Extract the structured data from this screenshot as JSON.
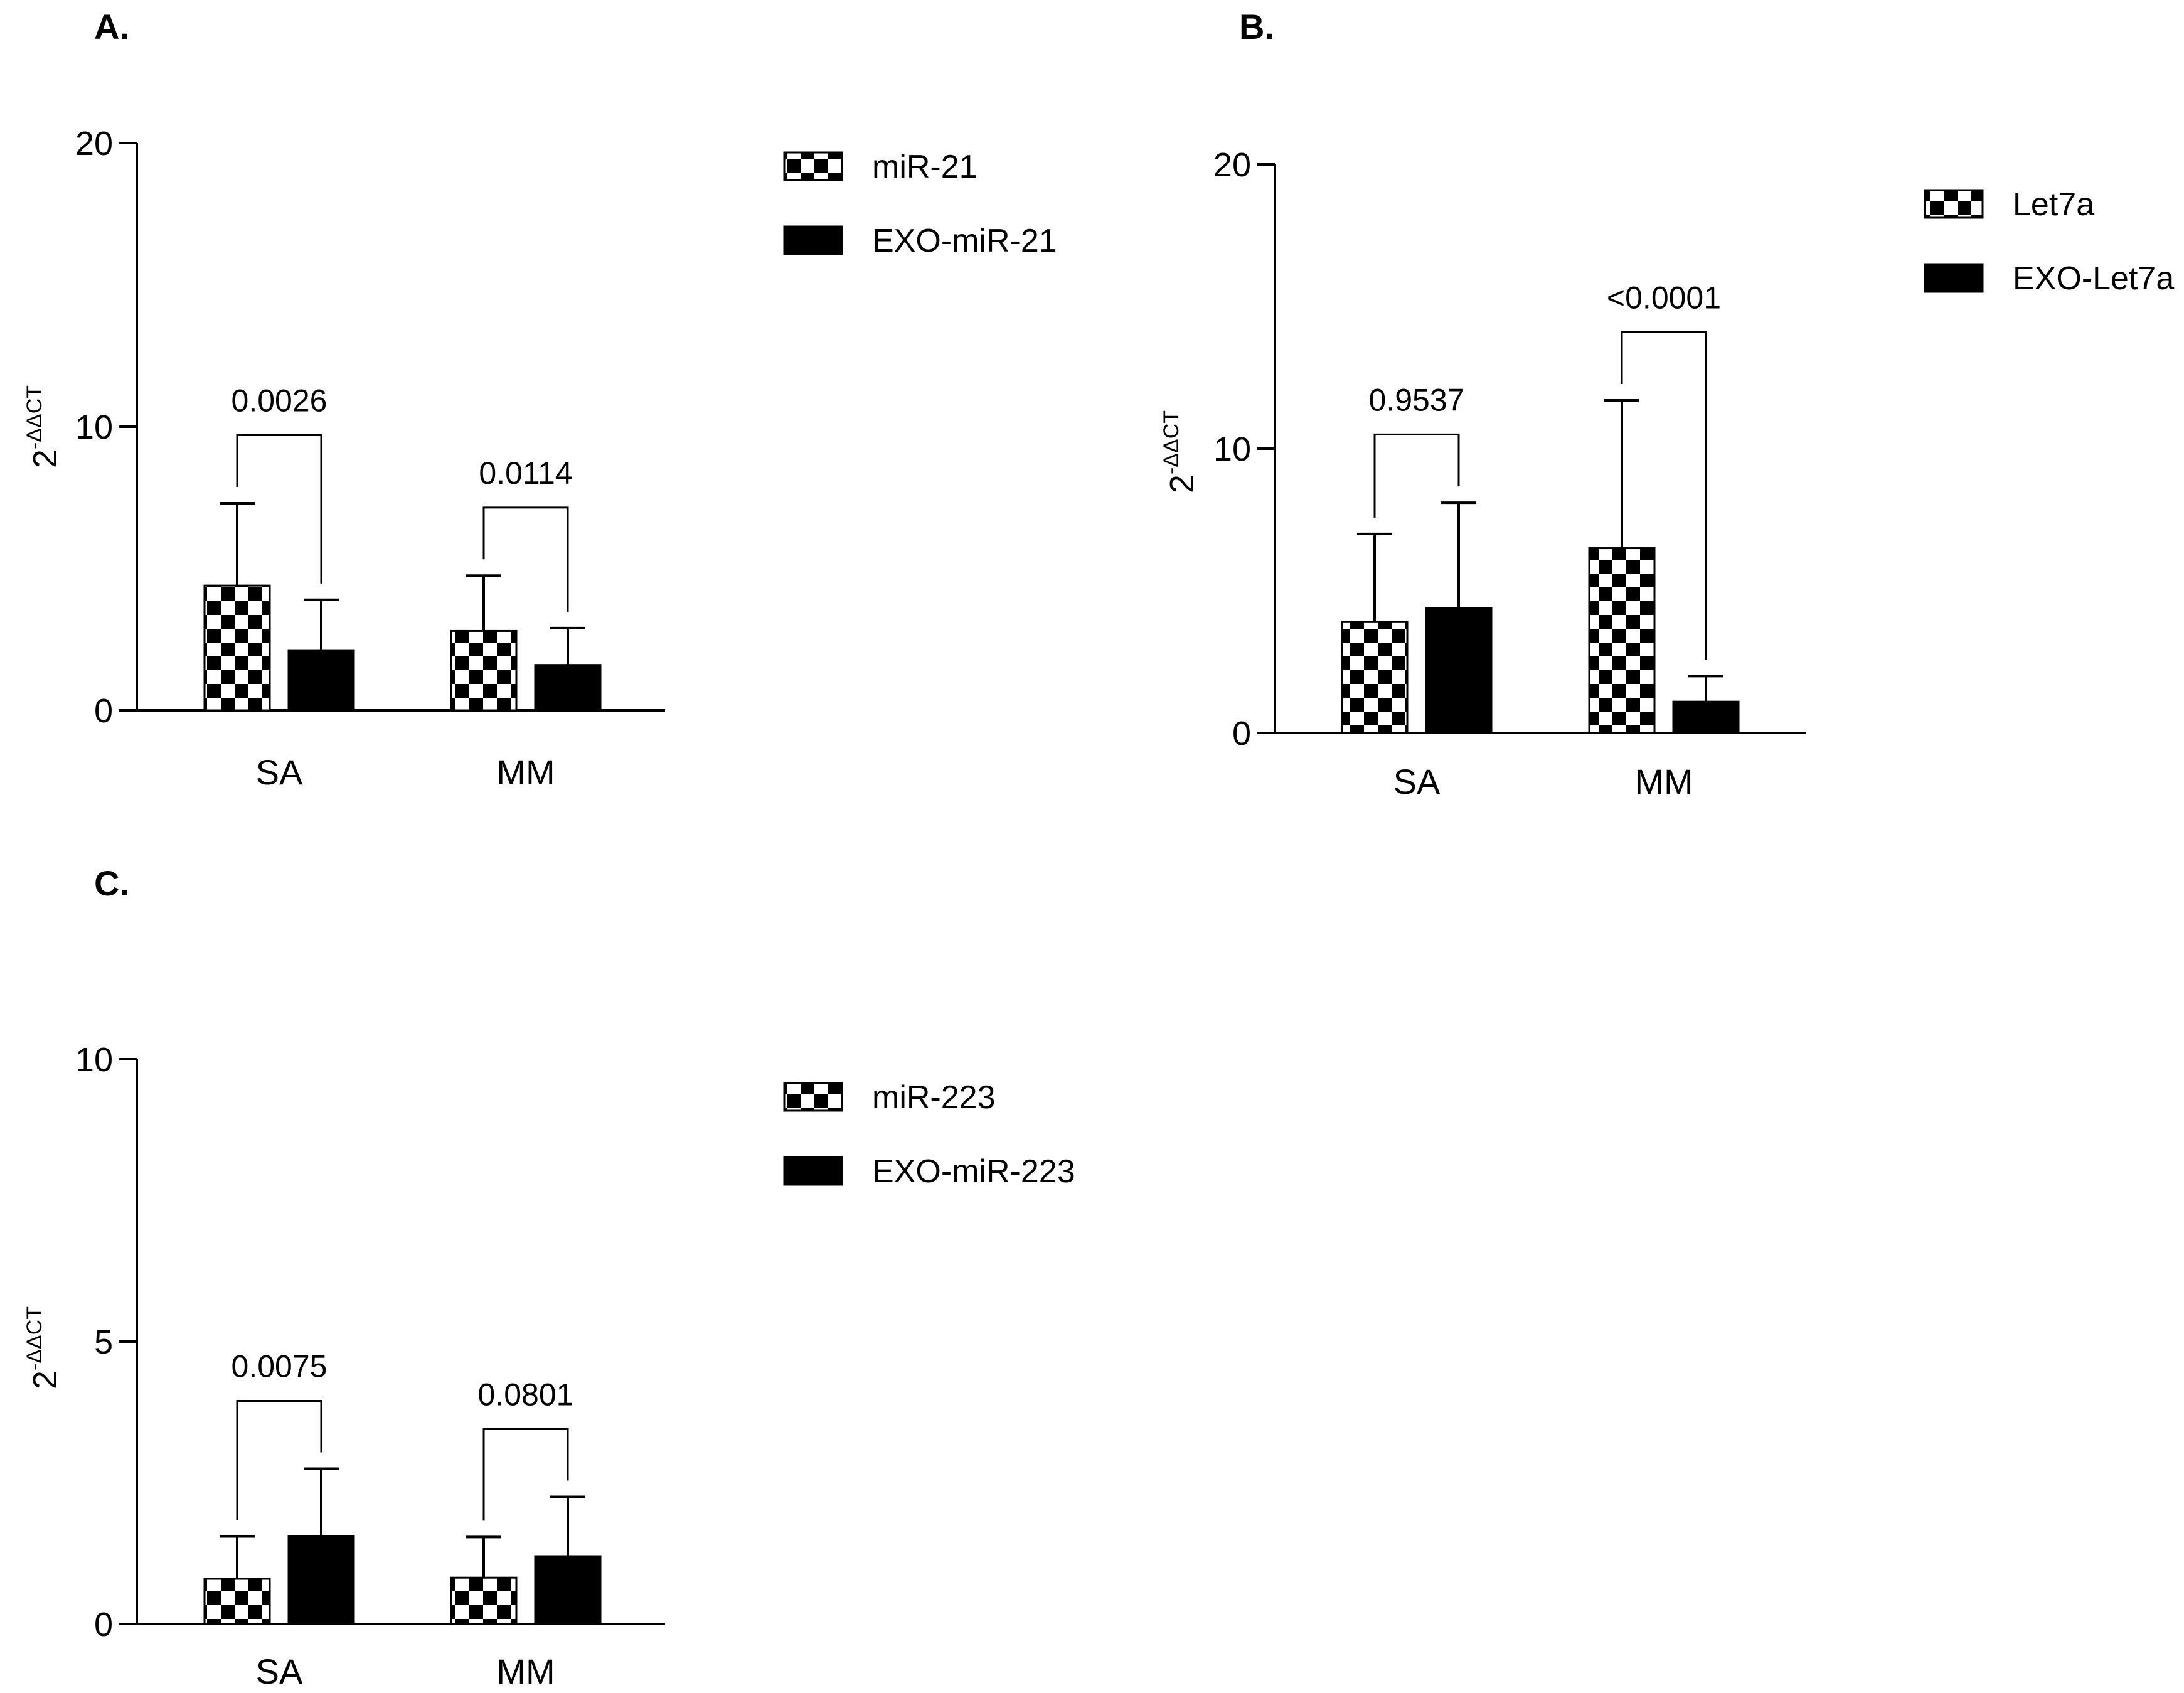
{
  "colors": {
    "axis": "#000000",
    "solid_bar": "#000000",
    "check_dark": "#000000",
    "check_light": "#ffffff"
  },
  "panels": [
    {
      "label": "A.",
      "chart_data": {
        "type": "bar",
        "title": "",
        "ylabel_base": "2",
        "ylabel_exp": "-ΔΔCT",
        "categories": [
          "SA",
          "MM"
        ],
        "ylim": [
          0,
          20
        ],
        "yticks": [
          0,
          10,
          20
        ],
        "series": [
          {
            "name": "miR-21",
            "pattern": "checker",
            "values": [
              4.4,
              2.8
            ],
            "errors": [
              2.9,
              1.95
            ]
          },
          {
            "name": "EXO-miR-21",
            "pattern": "solid",
            "values": [
              2.1,
              1.6
            ],
            "errors": [
              1.8,
              1.3
            ]
          }
        ],
        "pvalues": [
          "0.0026",
          "0.0114"
        ],
        "legend": "right"
      }
    },
    {
      "label": "B.",
      "chart_data": {
        "type": "bar",
        "title": "",
        "ylabel_base": "2",
        "ylabel_exp": "-ΔΔCT",
        "categories": [
          "SA",
          "MM"
        ],
        "ylim": [
          0,
          20
        ],
        "yticks": [
          0,
          10,
          20
        ],
        "series": [
          {
            "name": "Let7a",
            "pattern": "checker",
            "values": [
              3.9,
              6.5
            ],
            "errors": [
              3.1,
              5.2
            ]
          },
          {
            "name": "EXO-Let7a",
            "pattern": "solid",
            "values": [
              4.4,
              1.1
            ],
            "errors": [
              3.7,
              0.9
            ]
          }
        ],
        "pvalues": [
          "0.9537",
          "<0.0001"
        ],
        "legend": "right"
      }
    },
    {
      "label": "C.",
      "chart_data": {
        "type": "bar",
        "title": "",
        "ylabel_base": "2",
        "ylabel_exp": "-ΔΔCT",
        "categories": [
          "SA",
          "MM"
        ],
        "ylim": [
          0,
          10
        ],
        "yticks": [
          0,
          5,
          10
        ],
        "series": [
          {
            "name": "miR-223",
            "pattern": "checker",
            "values": [
              0.8,
              0.82
            ],
            "errors": [
              0.75,
              0.72
            ]
          },
          {
            "name": "EXO-miR-223",
            "pattern": "solid",
            "values": [
              1.55,
              1.2
            ],
            "errors": [
              1.2,
              1.05
            ]
          }
        ],
        "pvalues": [
          "0.0075",
          "0.0801"
        ],
        "legend": "right"
      }
    }
  ]
}
